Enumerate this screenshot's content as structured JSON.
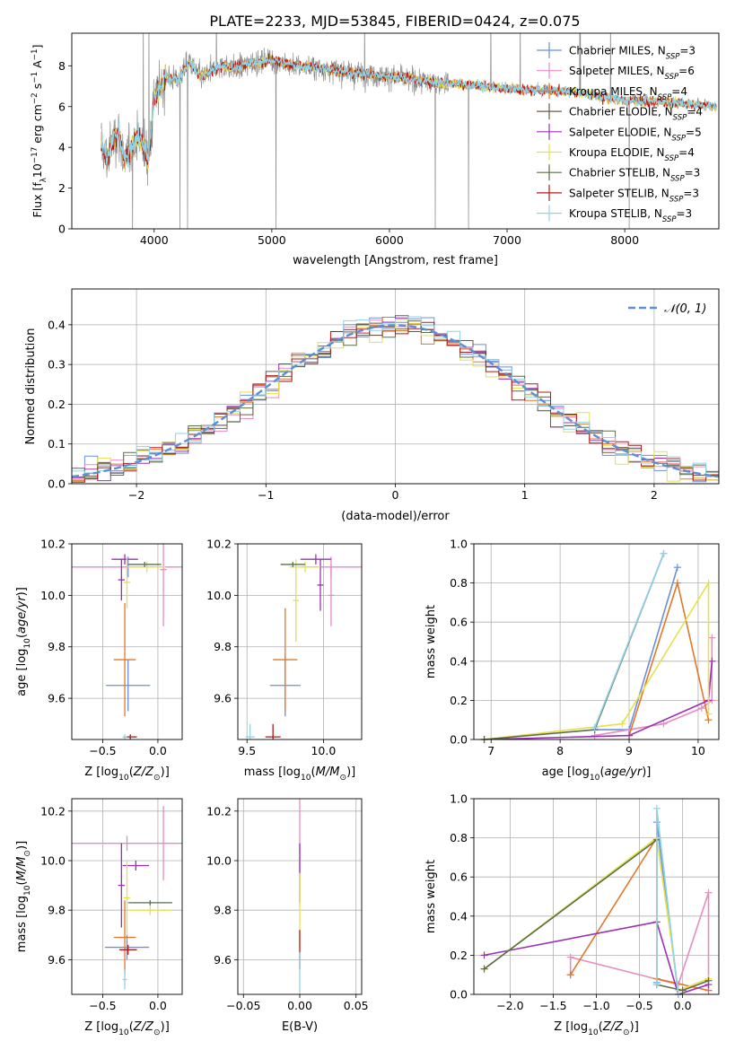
{
  "title": "PLATE=2233, MJD=53845, FIBERID=0424, z=0.075",
  "colors": {
    "grey": "#8c8c8c",
    "chabrier_miles": "#6b8fd9",
    "salpeter_miles": "#e98ac0",
    "kroupa_miles": "#e0782c",
    "chabrier_elodie": "#6d5a4a",
    "salpeter_elodie": "#9b30b5",
    "kroupa_elodie": "#e6e04a",
    "chabrier_stelib": "#5a6e4a",
    "salpeter_stelib": "#b01a1a",
    "kroupa_stelib": "#8fd3e8",
    "normal": "#5b8fd6"
  },
  "chart_data": [
    {
      "type": "line",
      "panel": "spectrum",
      "xlabel": "wavelength [Angstrom, rest frame]",
      "ylabel_parts": [
        "Flux [f",
        "λ",
        "10",
        "−17",
        " erg cm",
        "−2",
        " s",
        "−1",
        " A",
        "−1",
        "]"
      ],
      "xlim": [
        3300,
        8800
      ],
      "ylim": [
        0,
        9.6
      ],
      "xticks": [
        4000,
        5000,
        6000,
        7000,
        8000
      ],
      "yticks": [
        0,
        2,
        4,
        6,
        8
      ],
      "grid": false,
      "legend_placement": "right",
      "legend": [
        {
          "name": "Chabrier MILES",
          "n": "3"
        },
        {
          "name": "Salpeter MILES",
          "n": "6"
        },
        {
          "name": "Kroupa MILES",
          "n": "4"
        },
        {
          "name": "Chabrier ELODIE",
          "n": "4"
        },
        {
          "name": "Salpeter ELODIE",
          "n": "5"
        },
        {
          "name": "Kroupa ELODIE",
          "n": "4"
        },
        {
          "name": "Chabrier STELIB",
          "n": "3"
        },
        {
          "name": "Salpeter STELIB",
          "n": "3"
        },
        {
          "name": "Kroupa STELIB",
          "n": "3"
        }
      ],
      "n_sub": "SSP",
      "model_x": [
        3550,
        3600,
        3650,
        3700,
        3750,
        3800,
        3850,
        3900,
        3950,
        4000,
        4100,
        4200,
        4300,
        4400,
        4500,
        4600,
        4700,
        4800,
        4900,
        5000,
        5200,
        5400,
        5600,
        5800,
        6000,
        6200,
        6400,
        6600,
        6800,
        7000,
        7200,
        7400,
        7600,
        7800,
        8000,
        8200,
        8400,
        8600,
        8780
      ],
      "model_y": [
        4.1,
        3.4,
        4.4,
        4.7,
        3.2,
        4.0,
        4.5,
        4.3,
        3.3,
        6.4,
        7.5,
        7.3,
        8.2,
        7.4,
        7.8,
        8.0,
        7.9,
        8.1,
        8.2,
        8.3,
        8.0,
        7.9,
        7.7,
        7.6,
        7.5,
        7.3,
        7.2,
        7.1,
        7.0,
        6.9,
        6.8,
        6.8,
        6.7,
        6.5,
        6.3,
        6.3,
        6.2,
        6.1,
        6.0
      ]
    },
    {
      "type": "histogram",
      "panel": "residuals",
      "xlabel": "(data-model)/error",
      "ylabel": "Normed distribution",
      "xlim": [
        -2.5,
        2.5
      ],
      "ylim": [
        0,
        0.49
      ],
      "xticks": [
        -2,
        -1,
        0,
        1,
        2
      ],
      "yticks": [
        0.0,
        0.1,
        0.2,
        0.3,
        0.4
      ],
      "grid": true,
      "legend": "𝒩(0, 1)",
      "legend_placement": "top-right",
      "bin_width": 0.1
    },
    {
      "type": "errorbar",
      "panel": "age-vs-Z",
      "xlabel": "Z [log10(Z/Z⊙)]",
      "ylabel": "age  [log10(age/yr)]",
      "xlim": [
        -0.78,
        0.22
      ],
      "ylim": [
        9.44,
        10.2
      ],
      "xticks": [
        -0.5,
        0.0
      ],
      "yticks": [
        9.6,
        9.8,
        10.0,
        10.2
      ],
      "grid": true,
      "points": [
        {
          "series": "chabrier_miles",
          "x": -0.27,
          "y": 9.65,
          "xerr": 0.2,
          "yerr": 0.1
        },
        {
          "series": "chabrier_miles",
          "x": -0.27,
          "y": 10.11,
          "xerr": 0.03,
          "yerr": 0.04
        },
        {
          "series": "salpeter_miles",
          "x": -0.28,
          "y": 10.11,
          "xerr": 0.5,
          "yerr": 0.03
        },
        {
          "series": "salpeter_miles",
          "x": 0.05,
          "y": 10.1,
          "xerr": 0.03,
          "yerr": 0.22
        },
        {
          "series": "kroupa_miles",
          "x": -0.3,
          "y": 9.75,
          "xerr": 0.1,
          "yerr": 0.22
        },
        {
          "series": "salpeter_elodie",
          "x": -0.33,
          "y": 10.06,
          "xerr": 0.03,
          "yerr": 0.08
        },
        {
          "series": "salpeter_elodie",
          "x": -0.3,
          "y": 10.14,
          "xerr": 0.12,
          "yerr": 0.02
        },
        {
          "series": "kroupa_elodie",
          "x": -0.28,
          "y": 10.05,
          "xerr": 0.03,
          "yerr": 0.1
        },
        {
          "series": "kroupa_elodie",
          "x": -0.1,
          "y": 10.11,
          "xerr": 0.17,
          "yerr": 0.02
        },
        {
          "series": "chabrier_stelib",
          "x": -0.12,
          "y": 10.12,
          "xerr": 0.15,
          "yerr": 0.01
        },
        {
          "series": "salpeter_stelib",
          "x": -0.25,
          "y": 9.45,
          "xerr": 0.06,
          "yerr": 0.01
        },
        {
          "series": "kroupa_stelib",
          "x": -0.3,
          "y": 9.45,
          "xerr": 0.02,
          "yerr": 0.01
        }
      ]
    },
    {
      "type": "errorbar",
      "panel": "age-vs-mass",
      "xlabel": "mass [log10(M/M⊙)]",
      "ylabel": "",
      "xlim": [
        9.44,
        10.25
      ],
      "ylim": [
        9.44,
        10.2
      ],
      "xticks": [
        9.5,
        10.0
      ],
      "yticks": [
        9.6,
        9.8,
        10.0,
        10.2
      ],
      "grid": true,
      "points": [
        {
          "series": "chabrier_miles",
          "x": 9.75,
          "y": 9.65,
          "xerr": 0.1,
          "yerr": 0.12
        },
        {
          "series": "salpeter_miles",
          "x": 10.05,
          "y": 10.11,
          "xerr": 0.2,
          "yerr": 0.04
        },
        {
          "series": "salpeter_miles",
          "x": 10.05,
          "y": 10.0,
          "xerr": 0.02,
          "yerr": 0.12
        },
        {
          "series": "kroupa_miles",
          "x": 9.75,
          "y": 9.75,
          "xerr": 0.08,
          "yerr": 0.2
        },
        {
          "series": "salpeter_elodie",
          "x": 9.95,
          "y": 10.14,
          "xerr": 0.1,
          "yerr": 0.02
        },
        {
          "series": "salpeter_elodie",
          "x": 9.98,
          "y": 10.04,
          "xerr": 0.02,
          "yerr": 0.1
        },
        {
          "series": "kroupa_elodie",
          "x": 9.88,
          "y": 10.11,
          "xerr": 0.1,
          "yerr": 0.02
        },
        {
          "series": "kroupa_elodie",
          "x": 9.82,
          "y": 9.98,
          "xerr": 0.02,
          "yerr": 0.16
        },
        {
          "series": "chabrier_stelib",
          "x": 9.8,
          "y": 10.12,
          "xerr": 0.08,
          "yerr": 0.01
        },
        {
          "series": "salpeter_stelib",
          "x": 9.67,
          "y": 9.45,
          "xerr": 0.05,
          "yerr": 0.05
        },
        {
          "series": "kroupa_stelib",
          "x": 9.52,
          "y": 9.45,
          "xerr": 0.03,
          "yerr": 0.05
        }
      ]
    },
    {
      "type": "line",
      "panel": "weight-vs-age",
      "xlabel": "age  [log10(age/yr)]",
      "ylabel": "mass weight",
      "xlim": [
        6.75,
        10.3
      ],
      "ylim": [
        0,
        1.0
      ],
      "xticks": [
        7,
        8,
        9,
        10
      ],
      "yticks": [
        0.0,
        0.2,
        0.4,
        0.6,
        0.8,
        1.0
      ],
      "grid": true,
      "series": [
        {
          "key": "chabrier_miles",
          "x": [
            8.5,
            9.0,
            9.7
          ],
          "y": [
            0.05,
            0.05,
            0.88
          ]
        },
        {
          "key": "salpeter_miles",
          "x": [
            8.5,
            9.5,
            10.05,
            10.2,
            10.2
          ],
          "y": [
            0.02,
            0.08,
            0.16,
            0.2,
            0.52
          ]
        },
        {
          "key": "kroupa_miles",
          "x": [
            9.0,
            9.7,
            10.15
          ],
          "y": [
            0.02,
            0.8,
            0.1
          ]
        },
        {
          "key": "salpeter_elodie",
          "x": [
            6.9,
            9.0,
            10.15,
            10.2
          ],
          "y": [
            0.0,
            0.02,
            0.2,
            0.4
          ]
        },
        {
          "key": "kroupa_elodie",
          "x": [
            6.9,
            8.9,
            10.15,
            10.15
          ],
          "y": [
            0.0,
            0.08,
            0.8,
            0.13
          ]
        },
        {
          "key": "chabrier_stelib",
          "x": [
            6.9,
            8.5,
            9.5
          ],
          "y": [
            0.0,
            0.05,
            0.95
          ]
        },
        {
          "key": "kroupa_stelib",
          "x": [
            8.5,
            9.5
          ],
          "y": [
            0.06,
            0.95
          ]
        }
      ]
    },
    {
      "type": "errorbar",
      "panel": "mass-vs-Z",
      "xlabel": "Z [log10(Z/Z⊙)]",
      "ylabel": "mass [log10(M/M⊙)]",
      "xlim": [
        -0.78,
        0.22
      ],
      "ylim": [
        9.46,
        10.25
      ],
      "xticks": [
        -0.5,
        0.0
      ],
      "yticks": [
        9.6,
        9.8,
        10.0,
        10.2
      ],
      "grid": true,
      "points": [
        {
          "series": "chabrier_miles",
          "x": -0.28,
          "y": 9.65,
          "xerr": 0.2,
          "yerr": 0.05
        },
        {
          "series": "salpeter_miles",
          "x": -0.28,
          "y": 10.07,
          "xerr": 0.5,
          "yerr": 0.03
        },
        {
          "series": "salpeter_miles",
          "x": 0.05,
          "y": 10.07,
          "xerr": 0.03,
          "yerr": 0.15
        },
        {
          "series": "kroupa_miles",
          "x": -0.3,
          "y": 9.69,
          "xerr": 0.1,
          "yerr": 0.15
        },
        {
          "series": "salpeter_elodie",
          "x": -0.2,
          "y": 9.98,
          "xerr": 0.12,
          "yerr": 0.02
        },
        {
          "series": "salpeter_elodie",
          "x": -0.33,
          "y": 9.9,
          "xerr": 0.03,
          "yerr": 0.17
        },
        {
          "series": "kroupa_elodie",
          "x": -0.07,
          "y": 9.8,
          "xerr": 0.2,
          "yerr": 0.02
        },
        {
          "series": "kroupa_elodie",
          "x": -0.28,
          "y": 9.85,
          "xerr": 0.03,
          "yerr": 0.15
        },
        {
          "series": "chabrier_stelib",
          "x": -0.07,
          "y": 9.83,
          "xerr": 0.2,
          "yerr": 0.01
        },
        {
          "series": "salpeter_stelib",
          "x": -0.27,
          "y": 9.64,
          "xerr": 0.08,
          "yerr": 0.02
        },
        {
          "series": "kroupa_stelib",
          "x": -0.3,
          "y": 9.52,
          "xerr": 0.02,
          "yerr": 0.04
        }
      ]
    },
    {
      "type": "errorbar",
      "panel": "mass-vs-EBV",
      "xlabel": "E(B-V)",
      "ylabel": "",
      "xlim": [
        -0.055,
        0.055
      ],
      "ylim": [
        9.46,
        10.25
      ],
      "xticks": [
        -0.05,
        0.0,
        0.05
      ],
      "yticks": [
        9.6,
        9.8,
        10.0,
        10.2
      ],
      "grid": true,
      "points": [
        {
          "series": "salpeter_miles",
          "x": 0.0,
          "y": 10.1,
          "xerr": 0.0,
          "yerr": 0.15
        },
        {
          "series": "salpeter_elodie",
          "x": 0.0,
          "y": 9.95,
          "xerr": 0.0,
          "yerr": 0.12
        },
        {
          "series": "kroupa_elodie",
          "x": 0.0,
          "y": 9.8,
          "xerr": 0.0,
          "yerr": 0.15
        },
        {
          "series": "salpeter_stelib",
          "x": 0.0,
          "y": 9.64,
          "xerr": 0.0,
          "yerr": 0.08
        },
        {
          "series": "kroupa_stelib",
          "x": 0.0,
          "y": 9.55,
          "xerr": 0.0,
          "yerr": 0.08
        }
      ]
    },
    {
      "type": "line",
      "panel": "weight-vs-Z",
      "xlabel": "Z [log10(Z/Z⊙)]",
      "ylabel": "mass weight",
      "xlim": [
        -2.42,
        0.42
      ],
      "ylim": [
        0,
        1.0
      ],
      "xticks": [
        -2.0,
        -1.5,
        -1.0,
        -0.5,
        0.0
      ],
      "yticks": [
        0.0,
        0.2,
        0.4,
        0.6,
        0.8,
        1.0
      ],
      "grid": true,
      "series": [
        {
          "key": "chabrier_miles",
          "x": [
            -0.3,
            -0.3,
            -0.05
          ],
          "y": [
            0.06,
            0.88,
            0.0
          ]
        },
        {
          "key": "salpeter_miles",
          "x": [
            -1.3,
            -1.3,
            -0.05,
            0.3,
            0.3
          ],
          "y": [
            0.1,
            0.19,
            0.05,
            0.52,
            0.02
          ]
        },
        {
          "key": "kroupa_miles",
          "x": [
            -1.3,
            -0.3,
            -0.3,
            0.3
          ],
          "y": [
            0.1,
            0.8,
            0.08,
            0.02
          ]
        },
        {
          "key": "salpeter_elodie",
          "x": [
            -2.3,
            -0.3,
            -0.05,
            0.3
          ],
          "y": [
            0.2,
            0.37,
            0.0,
            0.05
          ]
        },
        {
          "key": "kroupa_elodie",
          "x": [
            -2.3,
            -0.3,
            -0.05,
            0.3
          ],
          "y": [
            0.13,
            0.8,
            0.02,
            0.08
          ]
        },
        {
          "key": "chabrier_stelib",
          "x": [
            -2.3,
            -0.3,
            -0.3,
            0.0,
            0.3
          ],
          "y": [
            0.13,
            0.79,
            0.05,
            0.02,
            0.07
          ]
        },
        {
          "key": "kroupa_stelib",
          "x": [
            -0.3,
            -0.3,
            -0.05
          ],
          "y": [
            0.05,
            0.95,
            0.0
          ]
        }
      ]
    }
  ]
}
